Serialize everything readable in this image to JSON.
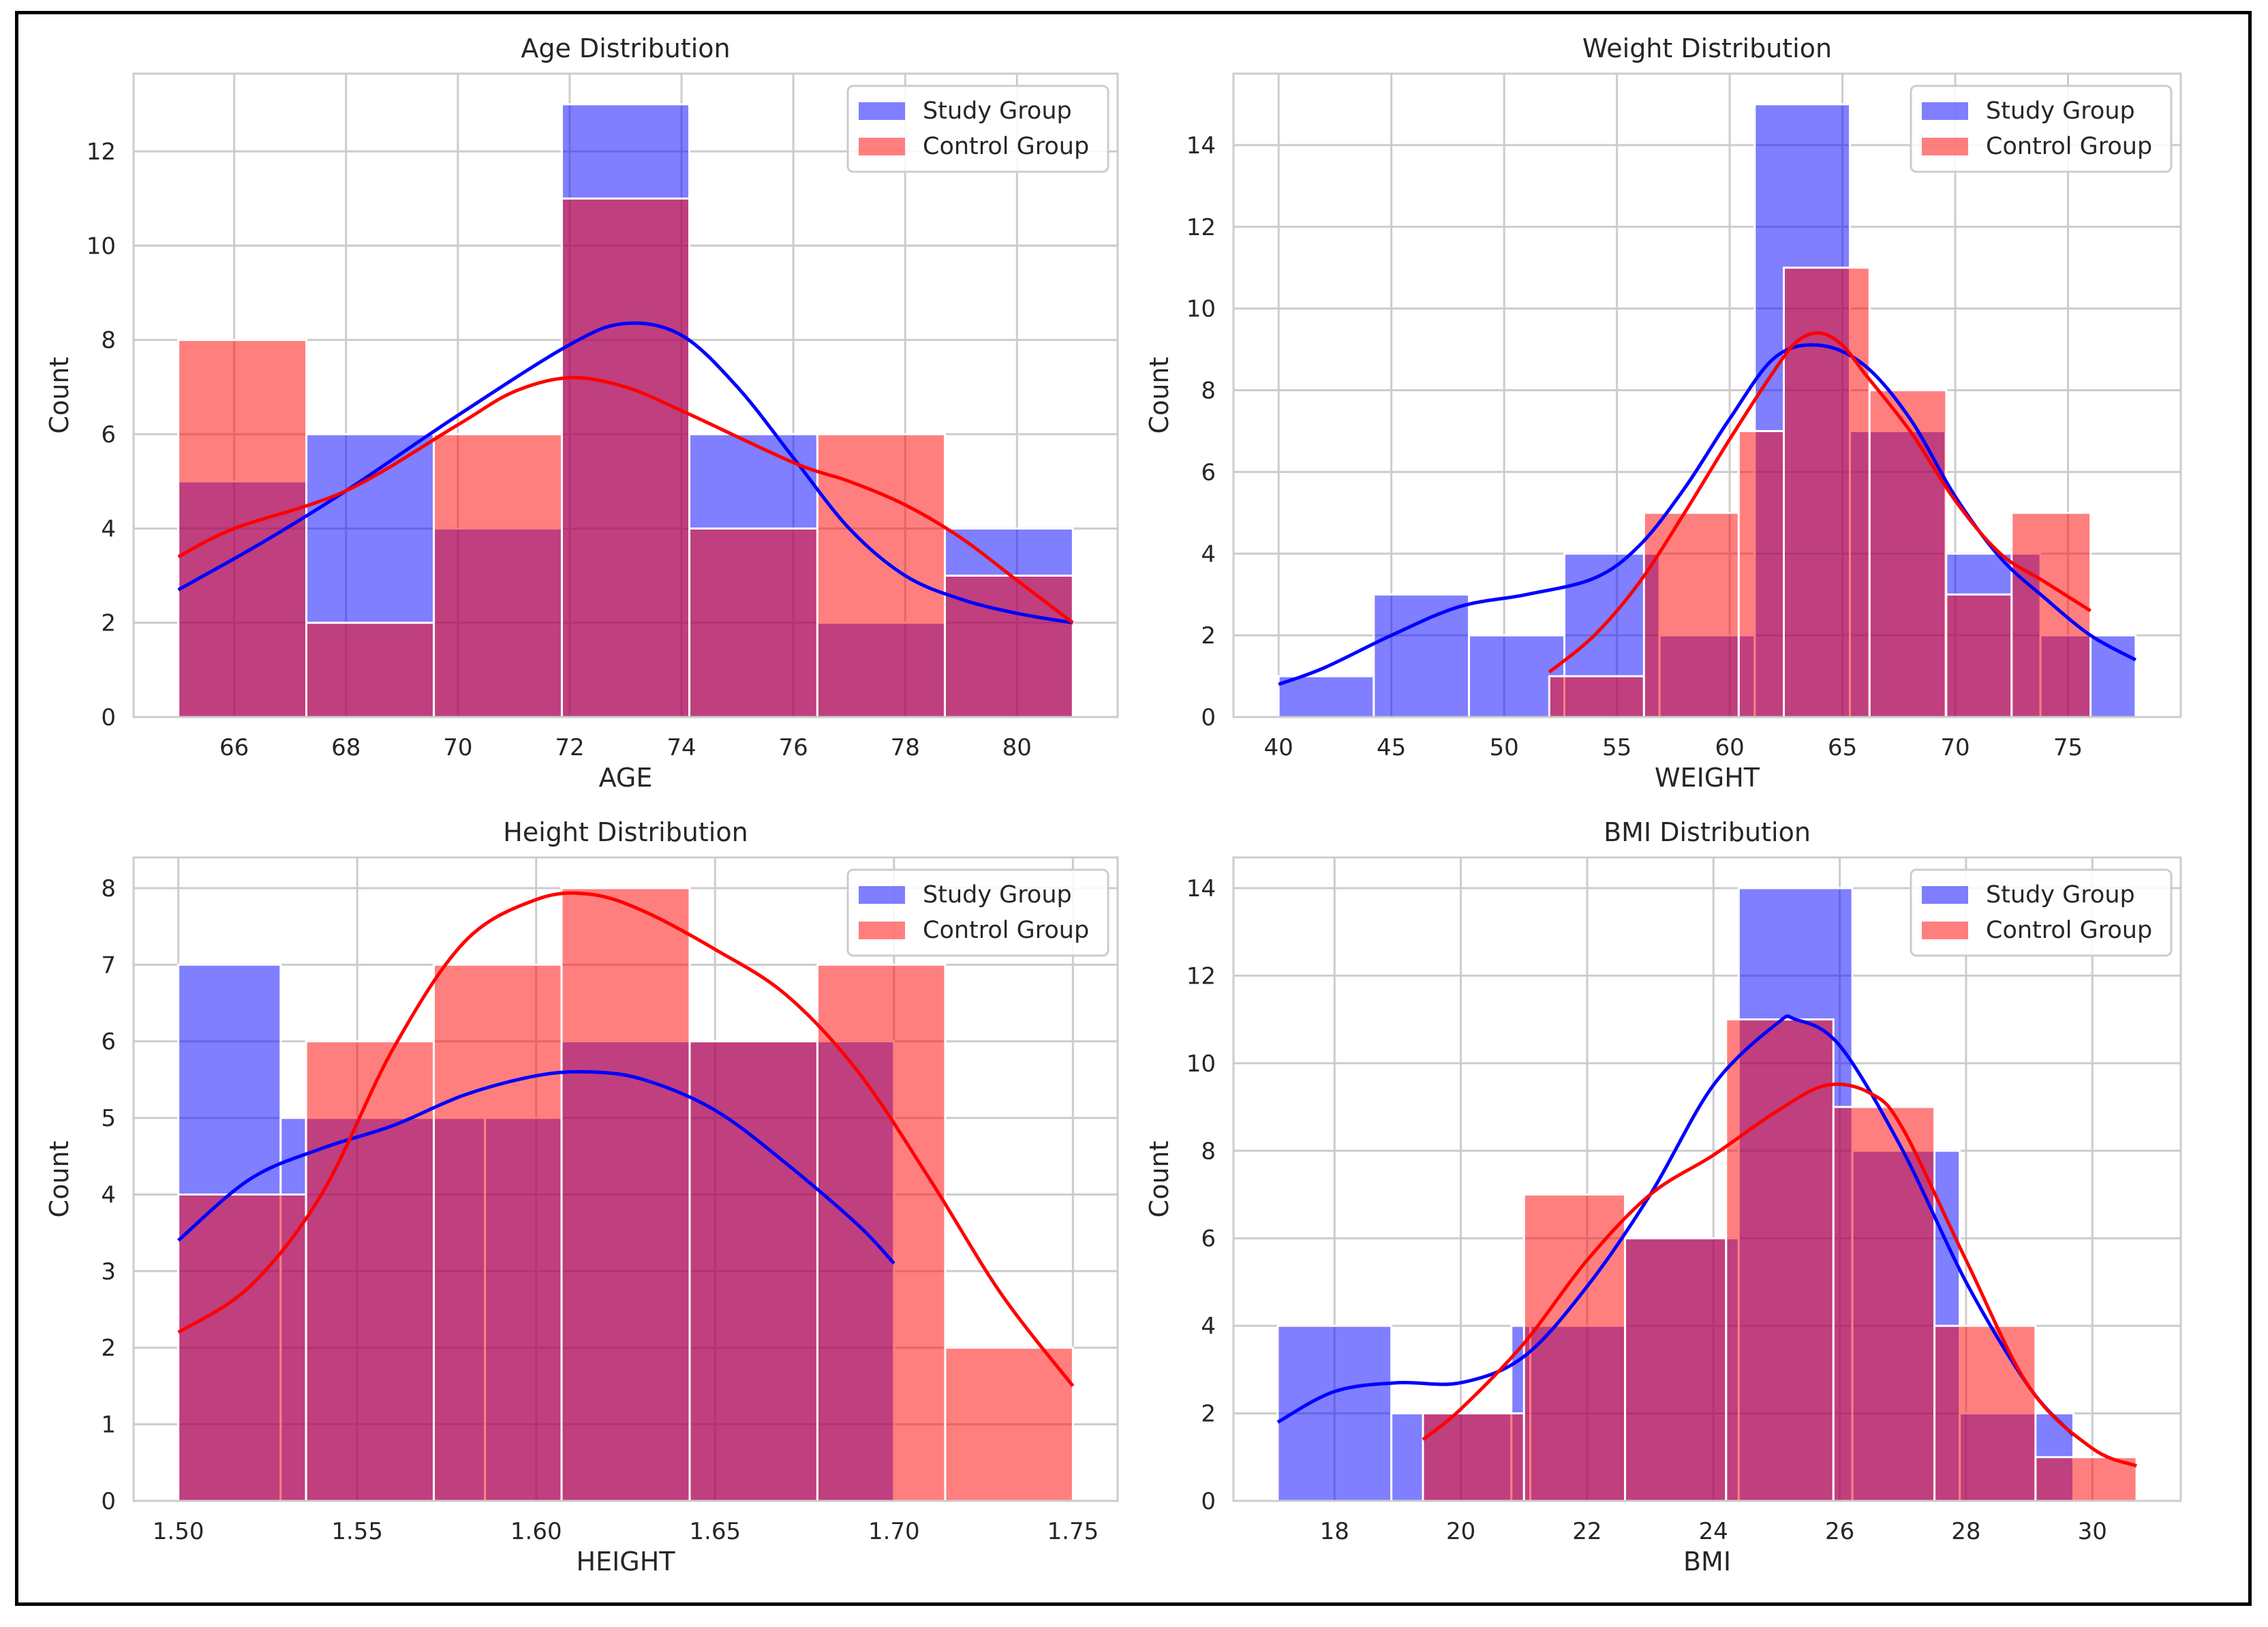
{
  "colors": {
    "study": "#0000ff",
    "control": "#ff0000",
    "grid": "#cccccc",
    "axes_bg": "#ffffff"
  },
  "chart_data": [
    {
      "type": "bar",
      "title": "Age Distribution",
      "xlabel": "AGE",
      "ylabel": "Count",
      "xlim": [
        64.2,
        81.8
      ],
      "ylim": [
        0,
        13.65
      ],
      "xticks": [
        66,
        68,
        70,
        72,
        74,
        76,
        78,
        80
      ],
      "yticks": [
        0,
        2,
        4,
        6,
        8,
        10,
        12
      ],
      "legend": "top-right",
      "series": [
        {
          "name": "Study Group",
          "edges": [
            65,
            67.29,
            69.57,
            71.86,
            74.14,
            76.43,
            78.71,
            81
          ],
          "counts": [
            5,
            6,
            4,
            13,
            6,
            2,
            4
          ],
          "kde_x": [
            65,
            66.5,
            68,
            70,
            72,
            73,
            74,
            75,
            76,
            77,
            78,
            79,
            80,
            81
          ],
          "kde_y": [
            2.7,
            3.7,
            4.8,
            6.4,
            7.9,
            8.35,
            8.1,
            7.0,
            5.5,
            4.0,
            3.0,
            2.5,
            2.2,
            2.0
          ]
        },
        {
          "name": "Control Group",
          "edges": [
            65,
            67.29,
            69.57,
            71.86,
            74.14,
            76.43,
            78.71,
            81
          ],
          "counts": [
            8,
            2,
            6,
            11,
            4,
            6,
            3
          ],
          "kde_x": [
            65,
            66,
            68,
            70,
            71,
            72,
            73,
            74,
            76,
            77,
            78,
            79,
            80,
            81
          ],
          "kde_y": [
            3.4,
            4.0,
            4.8,
            6.2,
            6.9,
            7.2,
            7.0,
            6.5,
            5.4,
            5.0,
            4.5,
            3.8,
            2.9,
            2.0
          ]
        }
      ]
    },
    {
      "type": "bar",
      "title": "Weight Distribution",
      "xlabel": "WEIGHT",
      "ylabel": "Count",
      "xlim": [
        38,
        80
      ],
      "ylim": [
        0,
        15.75
      ],
      "xticks": [
        40,
        45,
        50,
        55,
        60,
        65,
        70,
        75
      ],
      "yticks": [
        0,
        2,
        4,
        6,
        8,
        10,
        12,
        14
      ],
      "legend": "top-right",
      "series": [
        {
          "name": "Study Group",
          "edges": [
            40,
            44.22,
            48.44,
            52.67,
            56.89,
            61.11,
            65.33,
            69.56,
            73.78,
            78
          ],
          "counts": [
            1,
            3,
            2,
            4,
            2,
            15,
            7,
            4,
            2
          ],
          "kde_x": [
            40,
            42,
            45,
            48,
            51,
            54,
            56,
            58,
            60,
            62,
            64,
            66,
            68,
            70,
            72,
            74,
            76,
            78
          ],
          "kde_y": [
            0.8,
            1.2,
            2.0,
            2.7,
            3.0,
            3.4,
            4.2,
            5.6,
            7.3,
            8.8,
            9.1,
            8.6,
            7.3,
            5.4,
            3.9,
            2.9,
            2.0,
            1.4
          ]
        },
        {
          "name": "Control Group",
          "edges": [
            52,
            56.2,
            60.4,
            64.6,
            68.8,
            73,
            76
          ],
          "bars": [
            [
              52,
              56.2,
              1
            ],
            [
              56.2,
              60.4,
              5
            ],
            [
              60.4,
              62.4,
              7
            ],
            [
              62.4,
              66.2,
              11
            ],
            [
              66.2,
              69.6,
              8
            ],
            [
              69.6,
              72.5,
              3
            ],
            [
              72.5,
              76,
              5
            ]
          ],
          "counts": [
            1,
            5,
            7,
            11,
            8,
            3,
            5
          ],
          "kde_x": [
            52,
            54,
            56,
            58,
            60,
            62,
            63,
            64,
            65,
            66,
            68,
            70,
            72,
            74,
            76
          ],
          "kde_y": [
            1.1,
            2.0,
            3.3,
            5.0,
            6.8,
            8.5,
            9.2,
            9.4,
            9.1,
            8.4,
            7.0,
            5.3,
            4.0,
            3.3,
            2.6
          ]
        }
      ]
    },
    {
      "type": "bar",
      "title": "Height Distribution",
      "xlabel": "HEIGHT",
      "ylabel": "Count",
      "xlim": [
        1.4875,
        1.7625
      ],
      "ylim": [
        0,
        8.4
      ],
      "xticks": [
        1.5,
        1.55,
        1.6,
        1.65,
        1.7,
        1.75
      ],
      "yticks": [
        0,
        1,
        2,
        3,
        4,
        5,
        6,
        7,
        8
      ],
      "legend": "top-right",
      "series": [
        {
          "name": "Study Group",
          "bars": [
            [
              1.5,
              1.5286,
              7
            ],
            [
              1.5286,
              1.5357,
              5
            ],
            [
              1.5357,
              1.5857,
              5
            ],
            [
              1.5857,
              1.6071,
              5
            ],
            [
              1.6071,
              1.6429,
              6
            ],
            [
              1.6429,
              1.6786,
              6
            ],
            [
              1.6786,
              1.7,
              6
            ]
          ],
          "counts": [
            7,
            5,
            5,
            5,
            6,
            6,
            6
          ],
          "kde_x": [
            1.5,
            1.52,
            1.54,
            1.56,
            1.58,
            1.6,
            1.615,
            1.63,
            1.65,
            1.67,
            1.69,
            1.7
          ],
          "kde_y": [
            3.4,
            4.2,
            4.6,
            4.9,
            5.3,
            5.55,
            5.6,
            5.5,
            5.1,
            4.4,
            3.6,
            3.1
          ]
        },
        {
          "name": "Control Group",
          "bars": [
            [
              1.5,
              1.5357,
              4
            ],
            [
              1.5357,
              1.5714,
              6
            ],
            [
              1.5714,
              1.6071,
              7
            ],
            [
              1.6071,
              1.6429,
              8
            ],
            [
              1.6429,
              1.6786,
              6
            ],
            [
              1.6786,
              1.7143,
              7
            ],
            [
              1.7143,
              1.75,
              2
            ]
          ],
          "counts": [
            4,
            6,
            7,
            8,
            6,
            7,
            2
          ],
          "kde_x": [
            1.5,
            1.52,
            1.54,
            1.56,
            1.58,
            1.6,
            1.615,
            1.63,
            1.65,
            1.67,
            1.69,
            1.71,
            1.73,
            1.75
          ],
          "kde_y": [
            2.2,
            2.8,
            4.0,
            5.9,
            7.3,
            7.85,
            7.92,
            7.7,
            7.2,
            6.6,
            5.6,
            4.2,
            2.7,
            1.5
          ]
        }
      ]
    },
    {
      "type": "bar",
      "title": "BMI Distribution",
      "xlabel": "BMI",
      "ylabel": "Count",
      "xlim": [
        16.4,
        31.4
      ],
      "ylim": [
        0,
        14.7
      ],
      "xticks": [
        18,
        20,
        22,
        24,
        26,
        28,
        30
      ],
      "yticks": [
        0,
        2,
        4,
        6,
        8,
        10,
        12,
        14
      ],
      "legend": "top-right",
      "series": [
        {
          "name": "Study Group",
          "bars": [
            [
              17.1,
              18.9,
              4
            ],
            [
              18.9,
              19.4,
              2
            ],
            [
              19.4,
              20.8,
              2
            ],
            [
              20.8,
              21.1,
              4
            ],
            [
              21.1,
              22.6,
              4
            ],
            [
              22.6,
              24.4,
              6
            ],
            [
              24.4,
              26.2,
              14
            ],
            [
              26.2,
              27.9,
              8
            ],
            [
              27.9,
              29.7,
              2
            ]
          ],
          "counts": [
            4,
            2,
            2,
            4,
            4,
            6,
            14,
            8,
            2
          ],
          "kde_x": [
            17.1,
            18,
            19,
            20,
            21,
            22,
            23,
            24,
            25,
            25.3,
            26,
            27,
            28,
            29,
            29.7
          ],
          "kde_y": [
            1.8,
            2.5,
            2.7,
            2.7,
            3.3,
            4.9,
            7.0,
            9.5,
            10.9,
            11.0,
            10.4,
            8.0,
            5.0,
            2.6,
            1.5
          ]
        },
        {
          "name": "Control Group",
          "bars": [
            [
              19.4,
              21.0,
              2
            ],
            [
              21.0,
              22.6,
              7
            ],
            [
              22.6,
              24.2,
              6
            ],
            [
              24.2,
              25.9,
              11
            ],
            [
              25.9,
              27.5,
              9
            ],
            [
              27.5,
              29.1,
              4
            ],
            [
              29.1,
              30.7,
              1
            ]
          ],
          "counts": [
            2,
            7,
            6,
            11,
            9,
            4,
            1
          ],
          "kde_x": [
            19.4,
            20,
            21,
            22,
            23,
            24,
            25,
            25.8,
            26.5,
            27,
            28,
            29,
            30,
            30.7
          ],
          "kde_y": [
            1.4,
            2.1,
            3.6,
            5.5,
            7.0,
            7.9,
            8.9,
            9.5,
            9.3,
            8.5,
            5.5,
            2.6,
            1.2,
            0.8
          ]
        }
      ]
    }
  ]
}
